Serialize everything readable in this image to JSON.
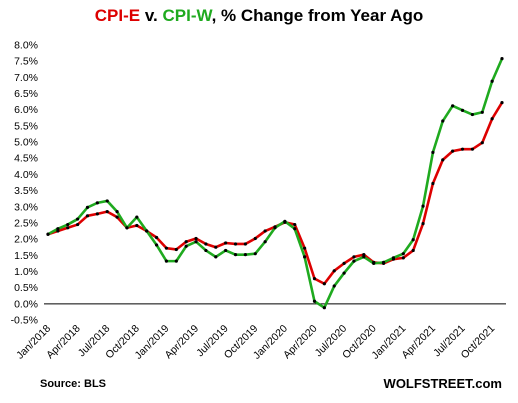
{
  "header": {
    "title_parts": [
      "CPI-E",
      " v. ",
      "CPI-W",
      ", % Change from Year Ago"
    ]
  },
  "footer": {
    "source": "Source: BLS",
    "site": "WOLFSTREET.com"
  },
  "chart_data": {
    "type": "line",
    "title": "CPI-E v. CPI-W, % Change from Year Ago",
    "x_tick_labels": [
      "Jan/2018",
      "Apr/2018",
      "Jul/2018",
      "Oct/2018",
      "Jan/2019",
      "Apr/2019",
      "Jul/2019",
      "Oct/2019",
      "Jan/2020",
      "Apr/2020",
      "Jul/2020",
      "Oct/2020",
      "Jan/2021",
      "Apr/2021",
      "Jul/2021",
      "Oct/2021"
    ],
    "y_tick_labels": [
      "-0.5%",
      "0.0%",
      "0.5%",
      "1.0%",
      "1.5%",
      "2.0%",
      "2.5%",
      "3.0%",
      "3.5%",
      "4.0%",
      "4.5%",
      "5.0%",
      "5.5%",
      "6.0%",
      "6.5%",
      "7.0%",
      "7.5%",
      "8.0%"
    ],
    "ylim": [
      -0.5,
      8.0
    ],
    "x": [
      "Jan/2018",
      "Feb/2018",
      "Mar/2018",
      "Apr/2018",
      "May/2018",
      "Jun/2018",
      "Jul/2018",
      "Aug/2018",
      "Sep/2018",
      "Oct/2018",
      "Nov/2018",
      "Dec/2018",
      "Jan/2019",
      "Feb/2019",
      "Mar/2019",
      "Apr/2019",
      "May/2019",
      "Jun/2019",
      "Jul/2019",
      "Aug/2019",
      "Sep/2019",
      "Oct/2019",
      "Nov/2019",
      "Dec/2019",
      "Jan/2020",
      "Feb/2020",
      "Mar/2020",
      "Apr/2020",
      "May/2020",
      "Jun/2020",
      "Jul/2020",
      "Aug/2020",
      "Sep/2020",
      "Oct/2020",
      "Nov/2020",
      "Dec/2020",
      "Jan/2021",
      "Feb/2021",
      "Mar/2021",
      "Apr/2021",
      "May/2021",
      "Jun/2021",
      "Jul/2021",
      "Aug/2021",
      "Sep/2021",
      "Oct/2021",
      "Nov/2021"
    ],
    "series": [
      {
        "name": "CPI-E",
        "color": "#dd0000",
        "values": [
          2.15,
          2.25,
          2.35,
          2.45,
          2.72,
          2.78,
          2.85,
          2.68,
          2.35,
          2.42,
          2.25,
          2.05,
          1.72,
          1.68,
          1.92,
          2.02,
          1.85,
          1.75,
          1.88,
          1.85,
          1.85,
          2.02,
          2.25,
          2.38,
          2.52,
          2.45,
          1.72,
          0.78,
          0.62,
          1.02,
          1.25,
          1.45,
          1.52,
          1.28,
          1.25,
          1.38,
          1.42,
          1.65,
          2.48,
          3.72,
          4.45,
          4.72,
          4.78,
          4.78,
          4.98,
          5.72,
          6.22
        ]
      },
      {
        "name": "CPI-W",
        "color": "#1faa1f",
        "values": [
          2.15,
          2.32,
          2.45,
          2.62,
          2.98,
          3.12,
          3.18,
          2.85,
          2.35,
          2.68,
          2.25,
          1.82,
          1.32,
          1.32,
          1.78,
          1.92,
          1.65,
          1.45,
          1.65,
          1.52,
          1.52,
          1.55,
          1.92,
          2.35,
          2.55,
          2.32,
          1.45,
          0.08,
          -0.12,
          0.55,
          0.95,
          1.32,
          1.45,
          1.25,
          1.28,
          1.42,
          1.55,
          1.98,
          3.02,
          4.68,
          5.65,
          6.12,
          5.98,
          5.85,
          5.92,
          6.88,
          7.58
        ]
      }
    ],
    "grid": false,
    "markers": true,
    "marker_color": "#000000"
  }
}
